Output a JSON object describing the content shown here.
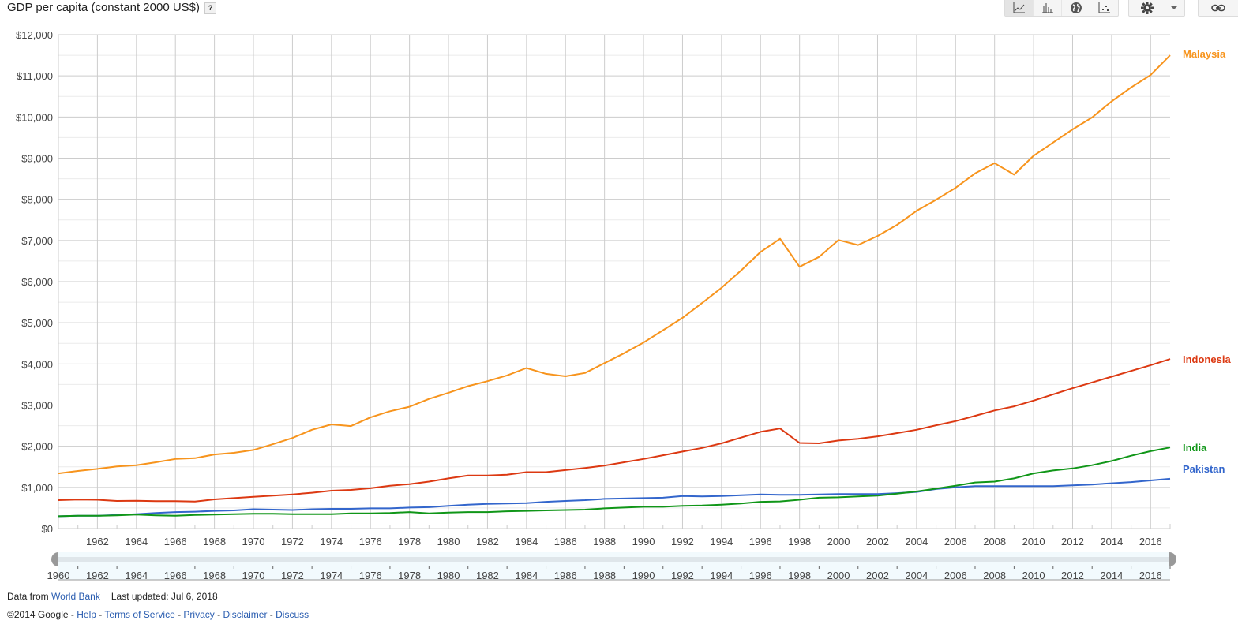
{
  "header": {
    "title": "GDP per capita (constant 2000 US$)",
    "help_label": "?"
  },
  "toolbar": {
    "views": [
      {
        "icon": "line-chart-icon",
        "active": true
      },
      {
        "icon": "bar-chart-icon",
        "active": false
      },
      {
        "icon": "globe-icon",
        "active": false
      },
      {
        "icon": "scatter-chart-icon",
        "active": false
      }
    ],
    "settings_icon": "gear-icon",
    "dropdown_icon": "caret-down-icon",
    "link_icon": "link-icon"
  },
  "chart_data": {
    "type": "line",
    "title": "GDP per capita (constant 2000 US$)",
    "xlabel": "",
    "ylabel": "",
    "xlim": [
      1960,
      2017
    ],
    "ylim": [
      0,
      12000
    ],
    "grid": true,
    "legend": "right (end-of-line labels)",
    "y_ticks": [
      "$0",
      "$1,000",
      "$2,000",
      "$3,000",
      "$4,000",
      "$5,000",
      "$6,000",
      "$7,000",
      "$8,000",
      "$9,000",
      "$10,000",
      "$11,000",
      "$12,000"
    ],
    "x_ticks": [
      "1962",
      "1964",
      "1966",
      "1968",
      "1970",
      "1972",
      "1974",
      "1976",
      "1978",
      "1980",
      "1982",
      "1984",
      "1986",
      "1988",
      "1990",
      "1992",
      "1994",
      "1996",
      "1998",
      "2000",
      "2002",
      "2004",
      "2006",
      "2008",
      "2010",
      "2012",
      "2014",
      "2016"
    ],
    "x": [
      1960,
      1961,
      1962,
      1963,
      1964,
      1965,
      1966,
      1967,
      1968,
      1969,
      1970,
      1971,
      1972,
      1973,
      1974,
      1975,
      1976,
      1977,
      1978,
      1979,
      1980,
      1981,
      1982,
      1983,
      1984,
      1985,
      1986,
      1987,
      1988,
      1989,
      1990,
      1991,
      1992,
      1993,
      1994,
      1995,
      1996,
      1997,
      1998,
      1999,
      2000,
      2001,
      2002,
      2003,
      2004,
      2005,
      2006,
      2007,
      2008,
      2009,
      2010,
      2011,
      2012,
      2013,
      2014,
      2015,
      2016,
      2017
    ],
    "series": [
      {
        "name": "Malaysia",
        "color": "#f7941d",
        "values": [
          1340,
          1400,
          1450,
          1510,
          1540,
          1610,
          1690,
          1710,
          1800,
          1840,
          1910,
          2050,
          2200,
          2400,
          2530,
          2490,
          2700,
          2850,
          2960,
          3150,
          3300,
          3460,
          3580,
          3720,
          3900,
          3760,
          3700,
          3780,
          4020,
          4260,
          4520,
          4820,
          5120,
          5480,
          5850,
          6270,
          6720,
          7040,
          6360,
          6600,
          7010,
          6890,
          7110,
          7380,
          7720,
          7990,
          8280,
          8630,
          8880,
          8600,
          9060,
          9380,
          9700,
          9990,
          10380,
          10720,
          11020,
          11500
        ]
      },
      {
        "name": "Indonesia",
        "color": "#dc3912",
        "values": [
          690,
          705,
          700,
          670,
          675,
          665,
          665,
          655,
          710,
          740,
          770,
          800,
          830,
          870,
          920,
          940,
          980,
          1040,
          1080,
          1140,
          1220,
          1290,
          1290,
          1310,
          1370,
          1370,
          1420,
          1470,
          1530,
          1610,
          1690,
          1780,
          1870,
          1960,
          2070,
          2210,
          2350,
          2430,
          2080,
          2070,
          2140,
          2180,
          2240,
          2320,
          2400,
          2510,
          2610,
          2740,
          2870,
          2970,
          3110,
          3260,
          3410,
          3550,
          3690,
          3830,
          3970,
          4120
        ]
      },
      {
        "name": "India",
        "color": "#109618",
        "values": [
          300,
          310,
          310,
          320,
          340,
          320,
          310,
          330,
          340,
          350,
          360,
          360,
          350,
          350,
          350,
          370,
          370,
          380,
          400,
          370,
          390,
          400,
          400,
          420,
          430,
          440,
          450,
          460,
          490,
          510,
          530,
          530,
          550,
          560,
          580,
          610,
          650,
          660,
          700,
          750,
          760,
          780,
          800,
          850,
          900,
          970,
          1040,
          1120,
          1140,
          1220,
          1340,
          1410,
          1460,
          1540,
          1640,
          1770,
          1880,
          1970
        ]
      },
      {
        "name": "Pakistan",
        "color": "#3366cc",
        "values": [
          300,
          310,
          310,
          330,
          350,
          380,
          400,
          410,
          430,
          440,
          470,
          460,
          450,
          470,
          480,
          480,
          490,
          490,
          510,
          520,
          550,
          580,
          600,
          610,
          620,
          650,
          670,
          690,
          720,
          730,
          740,
          750,
          790,
          780,
          790,
          810,
          830,
          820,
          820,
          830,
          840,
          840,
          840,
          860,
          890,
          960,
          1000,
          1030,
          1030,
          1030,
          1030,
          1030,
          1050,
          1070,
          1100,
          1130,
          1170,
          1210
        ]
      }
    ]
  },
  "range_slider": {
    "start_label": "1960",
    "tick_labels": [
      "1960",
      "1962",
      "1964",
      "1966",
      "1968",
      "1970",
      "1972",
      "1974",
      "1976",
      "1978",
      "1980",
      "1982",
      "1984",
      "1986",
      "1988",
      "1990",
      "1992",
      "1994",
      "1996",
      "1998",
      "2000",
      "2002",
      "2004",
      "2006",
      "2008",
      "2010",
      "2012",
      "2014",
      "2016"
    ],
    "selected_range": [
      1960,
      2017
    ]
  },
  "footer": {
    "data_from_prefix": "Data from",
    "data_source_link": "World Bank",
    "last_updated": "Last updated: Jul 6, 2018",
    "copyright": "©2014 Google",
    "separator": " - ",
    "links": [
      "Help",
      "Terms of Service",
      "Privacy",
      "Disclaimer",
      "Discuss"
    ]
  }
}
